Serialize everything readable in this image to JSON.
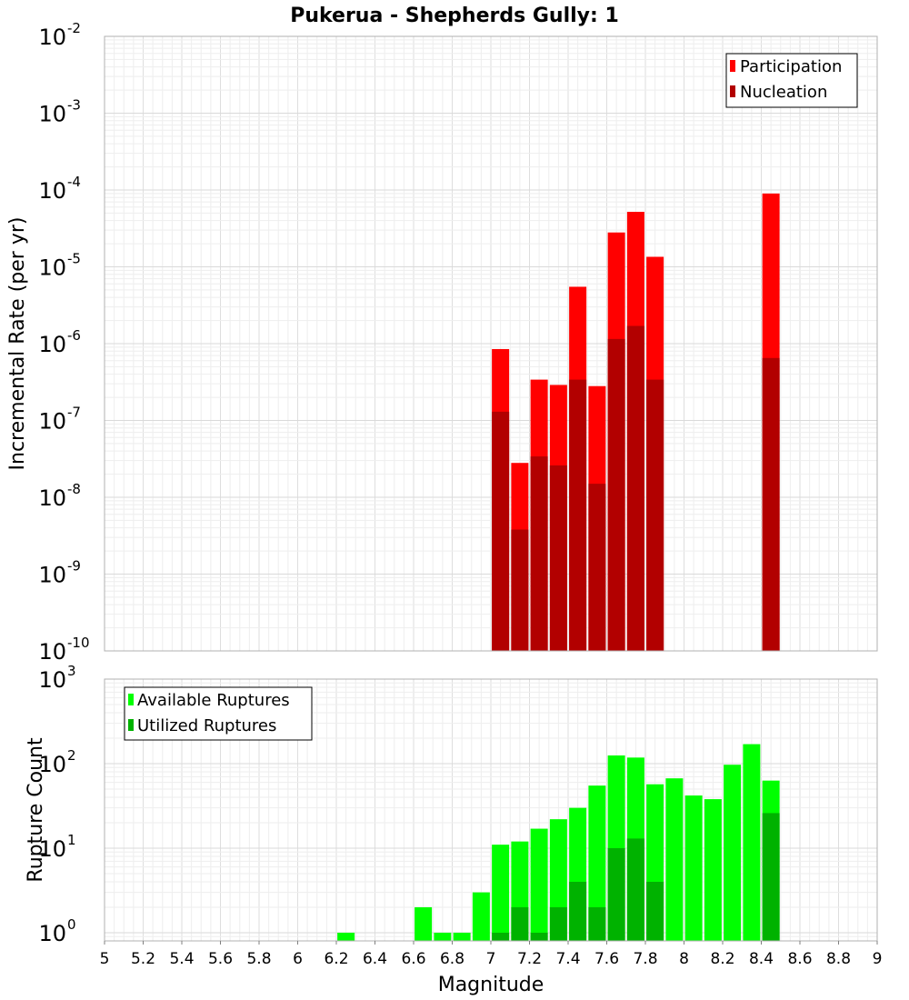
{
  "chart_data": [
    {
      "type": "bar",
      "title": "Pukerua - Shepherds Gully: 1",
      "xlabel": "Magnitude",
      "ylabel": "Incremental Rate (per yr)",
      "xlim": [
        5,
        9
      ],
      "ylim": [
        1e-10,
        0.01
      ],
      "yscale": "log",
      "grid": true,
      "legend_placement": "top-right",
      "x": [
        7.05,
        7.15,
        7.25,
        7.35,
        7.45,
        7.55,
        7.65,
        7.75,
        7.85,
        8.45
      ],
      "series": [
        {
          "name": "Participation",
          "color": "#ff0000",
          "values": [
            8.5e-07,
            2.8e-08,
            3.4e-07,
            2.9e-07,
            5.5e-06,
            2.8e-07,
            2.8e-05,
            5.2e-05,
            1.35e-05,
            9e-05
          ]
        },
        {
          "name": "Nucleation",
          "color": "#b20000",
          "values": [
            1.3e-07,
            3.8e-09,
            3.4e-08,
            2.6e-08,
            3.4e-07,
            1.5e-08,
            1.15e-06,
            1.7e-06,
            3.4e-07,
            6.5e-07
          ]
        }
      ]
    },
    {
      "type": "bar",
      "xlabel": "Magnitude",
      "ylabel": "Rupture Count",
      "xlim": [
        5,
        9
      ],
      "ylim": [
        0.8,
        1000
      ],
      "yscale": "log",
      "grid": true,
      "legend_placement": "top-left",
      "x": [
        6.25,
        6.65,
        6.75,
        6.85,
        6.95,
        7.05,
        7.15,
        7.25,
        7.35,
        7.45,
        7.55,
        7.65,
        7.75,
        7.85,
        7.95,
        8.05,
        8.15,
        8.25,
        8.35,
        8.45
      ],
      "series": [
        {
          "name": "Available Ruptures",
          "color": "#00ff00",
          "values": [
            1,
            2,
            1,
            1,
            3,
            11,
            12,
            17,
            22,
            30,
            55,
            125,
            118,
            57,
            67,
            42,
            38,
            97,
            170,
            63
          ]
        },
        {
          "name": "Utilized Ruptures",
          "color": "#00b200",
          "values": [
            0,
            0,
            0,
            0,
            0,
            1,
            2,
            1,
            2,
            4,
            2,
            10,
            13,
            4,
            0,
            0,
            0,
            0,
            0,
            26
          ]
        }
      ]
    }
  ],
  "x_ticks": [
    "5",
    "5.2",
    "5.4",
    "5.6",
    "5.8",
    "6",
    "6.2",
    "6.4",
    "6.6",
    "6.8",
    "7",
    "7.2",
    "7.4",
    "7.6",
    "7.8",
    "8",
    "8.2",
    "8.4",
    "8.6",
    "8.8",
    "9"
  ],
  "top_y_ticks": [
    {
      "base": "10",
      "exp": "-2"
    },
    {
      "base": "10",
      "exp": "-3"
    },
    {
      "base": "10",
      "exp": "-4"
    },
    {
      "base": "10",
      "exp": "-5"
    },
    {
      "base": "10",
      "exp": "-6"
    },
    {
      "base": "10",
      "exp": "-7"
    },
    {
      "base": "10",
      "exp": "-8"
    },
    {
      "base": "10",
      "exp": "-9"
    },
    {
      "base": "10",
      "exp": "-10"
    }
  ],
  "bottom_y_ticks": [
    {
      "base": "10",
      "exp": "3"
    },
    {
      "base": "10",
      "exp": "2"
    },
    {
      "base": "10",
      "exp": "1"
    },
    {
      "base": "10",
      "exp": "0"
    }
  ]
}
